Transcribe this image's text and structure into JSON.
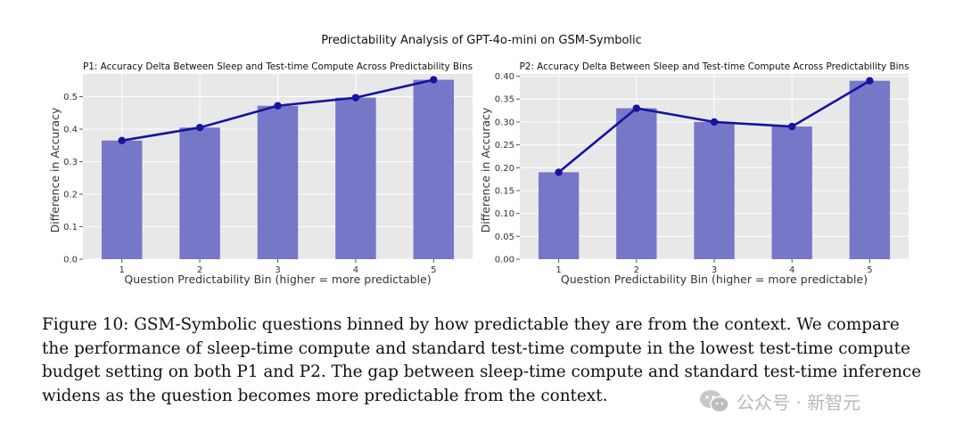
{
  "figure": {
    "suptitle": "Predictability Analysis of GPT-4o-mini on GSM-Symbolic",
    "caption": "Figure 10: GSM-Symbolic questions binned by how predictable they are from the context. We compare the performance of sleep-time compute and standard test-time compute in the lowest test-time compute budget setting on both P1 and P2. The gap between sleep-time compute and standard test-time inference widens as the question becomes more predictable from the context.",
    "watermark": "公众号 · 新智元"
  },
  "colors": {
    "bar": "#7777c8",
    "line": "#1414a0",
    "panel_bg": "#e8e8e8",
    "grid": "#ffffff"
  },
  "chart_data": [
    {
      "type": "bar",
      "title": "P1: Accuracy Delta Between Sleep and Test-time Compute Across Predictability Bins",
      "xlabel": "Question Predictability Bin (higher = more predictable)",
      "ylabel": "Difference in Accuracy",
      "categories": [
        "1",
        "2",
        "3",
        "4",
        "5"
      ],
      "values": [
        0.365,
        0.405,
        0.472,
        0.497,
        0.552
      ],
      "overlay_line": true,
      "ylim": [
        0,
        0.57
      ],
      "yticks": [
        0.0,
        0.1,
        0.2,
        0.3,
        0.4,
        0.5
      ],
      "ytick_labels": [
        "0.0",
        "0.1",
        "0.2",
        "0.3",
        "0.4",
        "0.5"
      ],
      "grid": true
    },
    {
      "type": "bar",
      "title": "P2: Accuracy Delta Between Sleep and Test-time Compute Across Predictability Bins",
      "xlabel": "Question Predictability Bin (higher = more predictable)",
      "ylabel": "Difference in Accuracy",
      "categories": [
        "1",
        "2",
        "3",
        "4",
        "5"
      ],
      "values": [
        0.19,
        0.33,
        0.3,
        0.29,
        0.39
      ],
      "overlay_line": true,
      "ylim": [
        0,
        0.405
      ],
      "yticks": [
        0.0,
        0.05,
        0.1,
        0.15,
        0.2,
        0.25,
        0.3,
        0.35,
        0.4
      ],
      "ytick_labels": [
        "0.00",
        "0.05",
        "0.10",
        "0.15",
        "0.20",
        "0.25",
        "0.30",
        "0.35",
        "0.40"
      ],
      "grid": true
    }
  ]
}
